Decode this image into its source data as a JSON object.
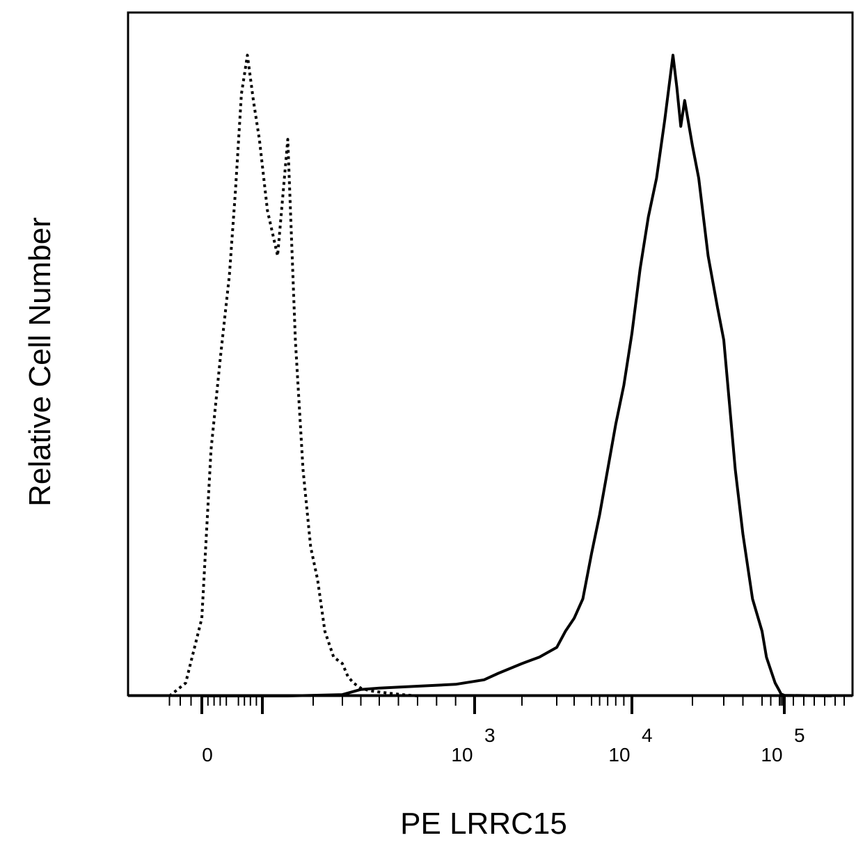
{
  "chart_data": {
    "type": "line",
    "title": "",
    "xlabel": "PE LRRC15",
    "ylabel": "Relative Cell Number",
    "x_scale": "biexponential",
    "xlim": [
      -40,
      150000
    ],
    "ylim": [
      0,
      1
    ],
    "grid": false,
    "x_ticks": [
      {
        "value": 0,
        "label": "0"
      },
      {
        "value": 1000,
        "base": "10",
        "exp": "3"
      },
      {
        "value": 10000,
        "base": "10",
        "exp": "4"
      },
      {
        "value": 100000,
        "base": "10",
        "exp": "5"
      }
    ],
    "series": [
      {
        "style": "dotted",
        "color": "#000000",
        "x": [
          -30,
          -15,
          0,
          15,
          30,
          45,
          55,
          65,
          75,
          85,
          95,
          110,
          130,
          150,
          165,
          180,
          195,
          215,
          240,
          270,
          300,
          330,
          360,
          400,
          450,
          500,
          560,
          620,
          700
        ],
        "y": [
          0.0,
          0.02,
          0.12,
          0.38,
          0.52,
          0.65,
          0.78,
          0.93,
          0.99,
          0.92,
          0.86,
          0.75,
          0.68,
          0.86,
          0.55,
          0.35,
          0.23,
          0.18,
          0.1,
          0.06,
          0.05,
          0.03,
          0.02,
          0.012,
          0.008,
          0.006,
          0.004,
          0.002,
          0.0
        ]
      },
      {
        "style": "solid",
        "color": "#000000",
        "x": [
          0,
          150,
          300,
          400,
          500,
          700,
          900,
          1200,
          1500,
          2000,
          2500,
          3000,
          3500,
          4000,
          4500,
          5000,
          6000,
          7000,
          8000,
          9000,
          10000,
          11000,
          12000,
          13000,
          14000,
          15000,
          16000,
          17000,
          18000,
          20000,
          22000,
          25000,
          28000,
          30000,
          33000,
          36000,
          40000,
          45000,
          50000,
          55000,
          60000,
          65000,
          70000,
          80000,
          100000,
          150000
        ],
        "y": [
          0.0,
          0.0,
          0.002,
          0.01,
          0.012,
          0.015,
          0.018,
          0.025,
          0.035,
          0.05,
          0.06,
          0.075,
          0.1,
          0.12,
          0.15,
          0.22,
          0.28,
          0.35,
          0.42,
          0.48,
          0.56,
          0.66,
          0.74,
          0.8,
          0.89,
          0.99,
          0.94,
          0.88,
          0.92,
          0.85,
          0.8,
          0.68,
          0.6,
          0.55,
          0.45,
          0.35,
          0.25,
          0.15,
          0.1,
          0.06,
          0.04,
          0.02,
          0.008,
          0.003,
          0.001,
          0.0
        ]
      }
    ]
  }
}
